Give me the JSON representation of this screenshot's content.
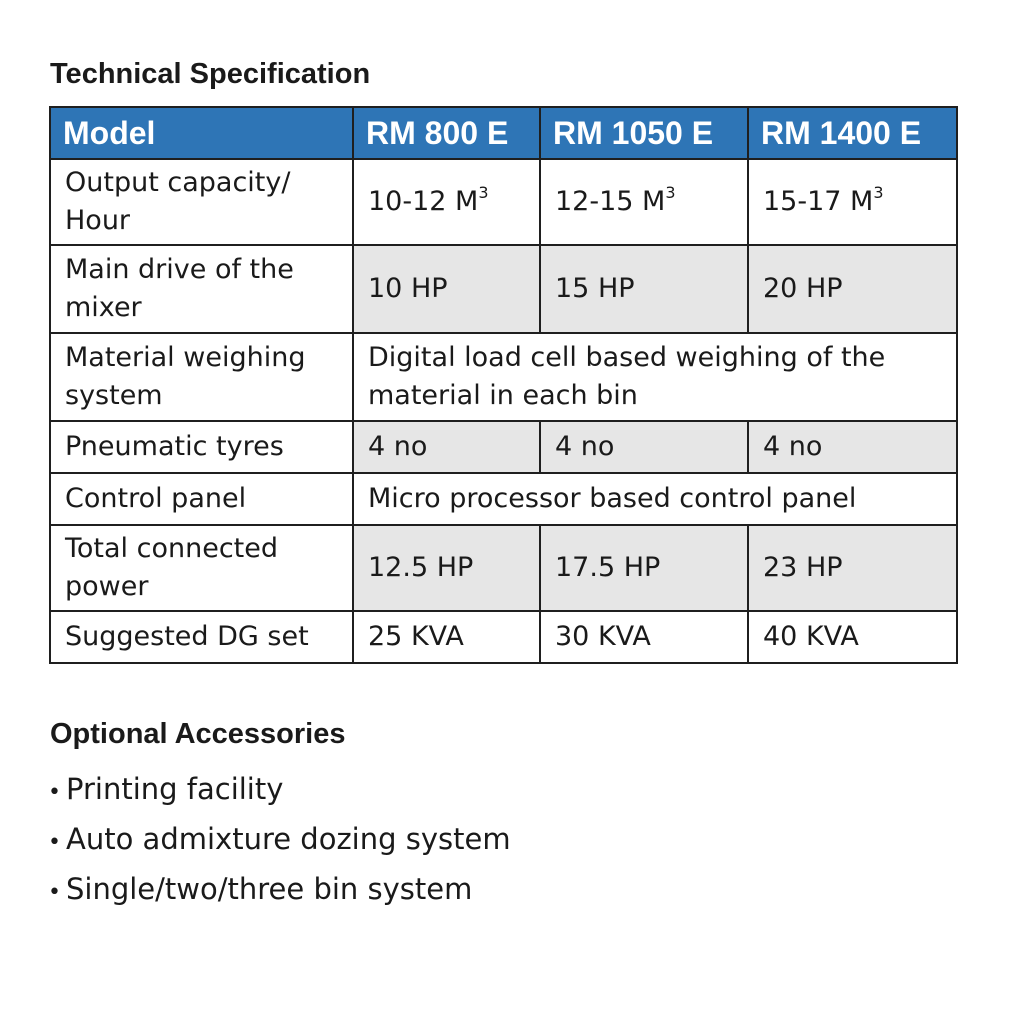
{
  "spec_title": "Technical Specification",
  "table": {
    "headers": [
      "Model",
      "RM 800 E",
      "RM 1050 E",
      "RM 1400 E"
    ],
    "rows": [
      {
        "label": "Output capacity/ Hour",
        "values": [
          "10-12 M",
          "12-15 M",
          "15-17 M"
        ],
        "sup": "3"
      },
      {
        "label": "Main drive of the mixer",
        "values": [
          "10 HP",
          "15 HP",
          "20 HP"
        ]
      },
      {
        "label": "Material weighing system",
        "span": "Digital load cell based weighing of the material in each bin"
      },
      {
        "label": "Pneumatic tyres",
        "values": [
          "4 no",
          "4 no",
          "4 no"
        ]
      },
      {
        "label": "Control panel",
        "span": "Micro processor based control panel"
      },
      {
        "label": "Total connected power",
        "values": [
          "12.5 HP",
          "17.5 HP",
          "23 HP"
        ]
      },
      {
        "label": "Suggested DG set",
        "values": [
          "25 KVA",
          "30 KVA",
          "40 KVA"
        ]
      }
    ]
  },
  "accessories_title": "Optional Accessories",
  "accessories": [
    "Printing facility",
    "Auto admixture dozing system",
    "Single/two/three bin system"
  ],
  "colors": {
    "header_bg": "#2e75b6",
    "shade_bg": "#e6e6e6"
  }
}
